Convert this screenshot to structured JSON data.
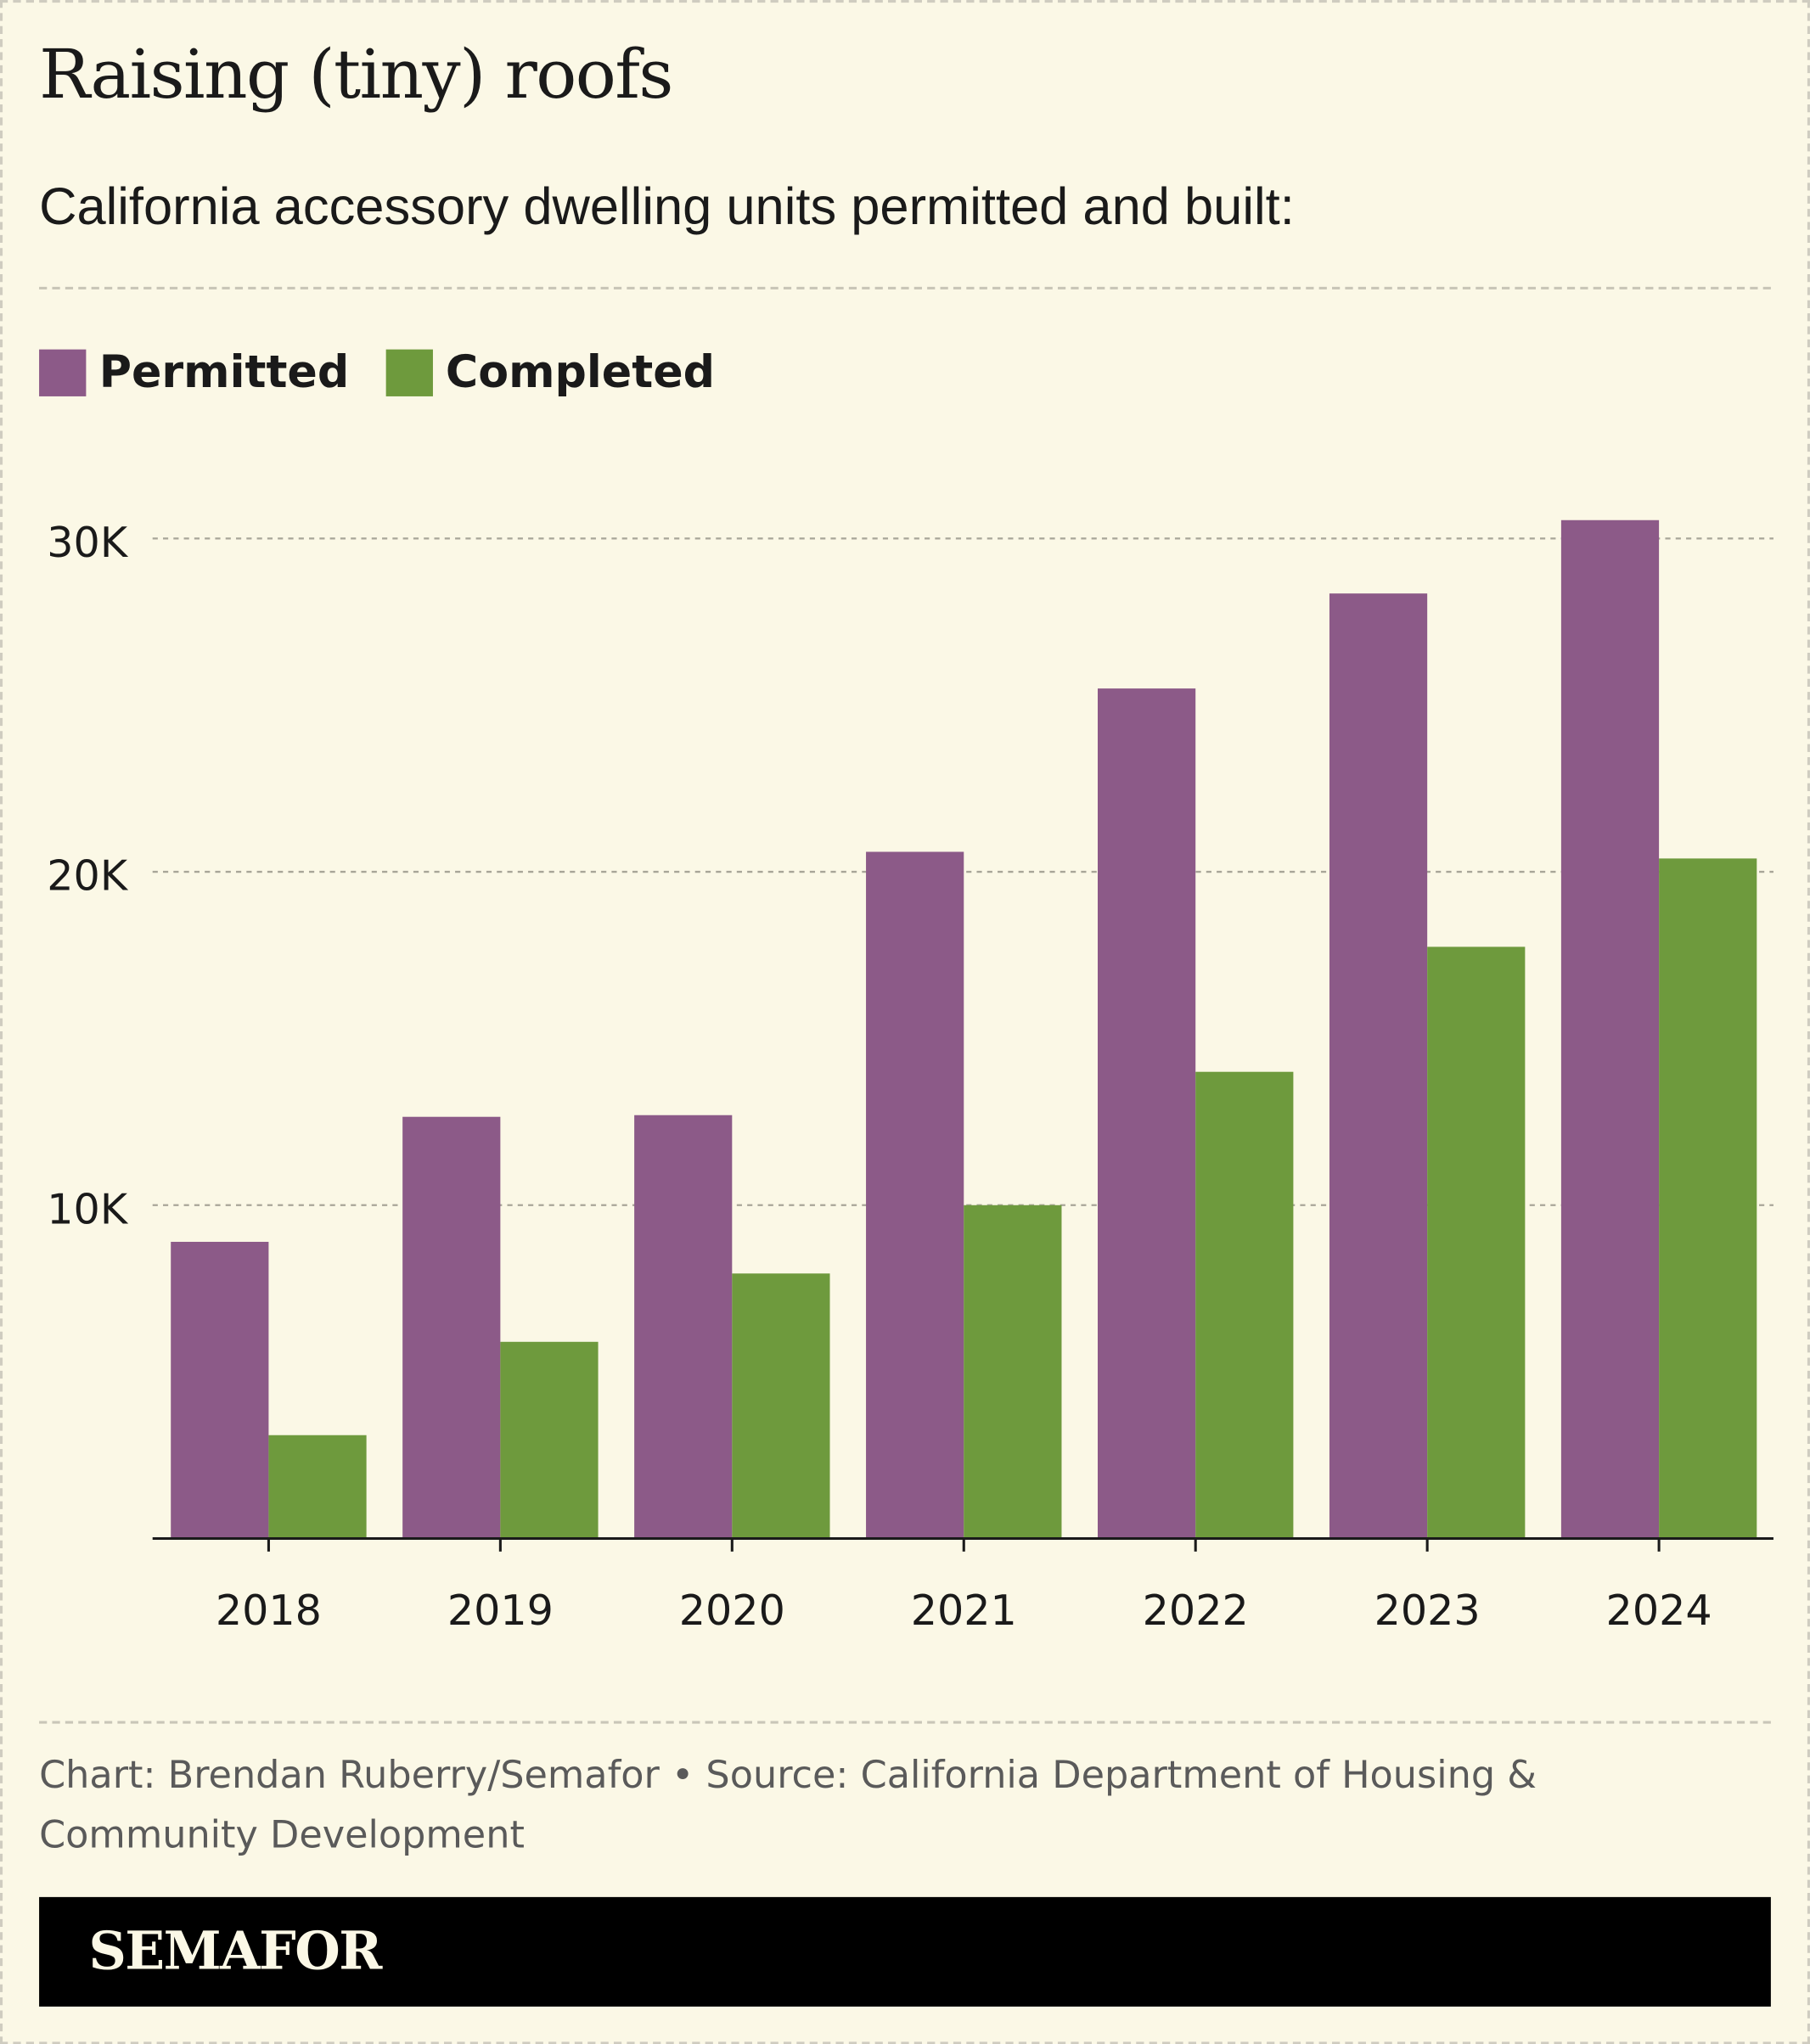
{
  "title": "Raising (tiny) roofs",
  "subtitle": "California accessory dwelling units permitted and built:",
  "footer": "Chart: Brendan Ruberry/Semafor • Source: California Department of Housing & Community Development",
  "brand": "SEMAFOR",
  "colors": {
    "permitted": "#8c5a88",
    "completed": "#6e9a3d",
    "background": "#fbf8e6"
  },
  "chart_data": {
    "type": "bar",
    "categories": [
      "2018",
      "2019",
      "2020",
      "2021",
      "2022",
      "2023",
      "2024"
    ],
    "series": [
      {
        "name": "Permitted",
        "values": [
          8900,
          12650,
          12700,
          20600,
          25500,
          28350,
          30550
        ]
      },
      {
        "name": "Completed",
        "values": [
          3100,
          5900,
          7950,
          10000,
          14000,
          17750,
          20400
        ]
      }
    ],
    "yticks": [
      10000,
      20000,
      30000
    ],
    "ytick_labels": [
      "10K",
      "20K",
      "30K"
    ],
    "ylim": [
      0,
      30000
    ],
    "grid": true,
    "legend": "top-left"
  }
}
